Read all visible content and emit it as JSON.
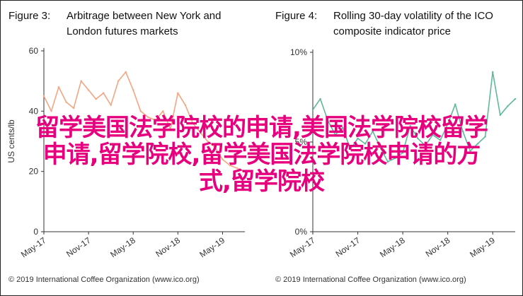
{
  "page": {
    "overlay_lines": [
      "留学美国法学院校的申请,美国法学院校留学",
      "申请,留学院校,留学美国法学院校申请的方",
      "式,留学院校"
    ]
  },
  "colors": {
    "fig3_series": "#f4a582",
    "fig3_series_dark": "#e8846a",
    "fig4_series": "#5fb89a",
    "axis": "#333333",
    "overlay": "#e6007e"
  },
  "chart_data": [
    {
      "type": "line",
      "figure_label": "Figure 3:",
      "title": "Arbitrage between New York and London futures markets",
      "ylabel": "US cents/lb",
      "ylim": [
        0,
        60
      ],
      "y_ticks": [
        0,
        20,
        40,
        60
      ],
      "x_tick_labels": [
        "May-17",
        "Nov-17",
        "May-18",
        "Nov-18",
        "May-19"
      ],
      "x_range_months": [
        0,
        27
      ],
      "grid": false,
      "credit": "© 2019 International Coffee Organization (www.ico.org)",
      "series": [
        {
          "x": [
            "2017-05",
            "2017-06",
            "2017-07",
            "2017-08",
            "2017-09",
            "2017-10",
            "2017-11",
            "2017-12",
            "2018-01",
            "2018-02",
            "2018-03",
            "2018-04",
            "2018-05",
            "2018-06",
            "2018-07",
            "2018-08",
            "2018-09",
            "2018-10",
            "2018-11",
            "2018-12",
            "2019-01",
            "2019-02",
            "2019-03",
            "2019-04",
            "2019-05",
            "2019-06",
            "2019-07",
            "2019-08"
          ],
          "values": [
            45,
            40,
            48,
            43,
            41,
            50,
            47,
            44,
            46,
            42,
            50,
            53,
            47,
            40,
            38,
            37,
            40,
            34,
            46,
            42,
            36,
            33,
            30,
            28,
            24,
            22,
            21,
            20
          ]
        }
      ]
    },
    {
      "type": "line",
      "figure_label": "Figure 4:",
      "title": "Rolling 30-day volatility of the ICO composite indicator price",
      "ylabel": "",
      "ylim": [
        0,
        10
      ],
      "y_ticks": [
        0,
        5,
        10
      ],
      "y_tick_labels": [
        "0%",
        "5%",
        "10%"
      ],
      "x_tick_labels": [
        "May-17",
        "Nov-17",
        "May-18",
        "Nov-18",
        "May-19"
      ],
      "x_range_months": [
        0,
        27
      ],
      "grid": false,
      "credit": "© 2019 International Coffee Organization (www.ico.org)",
      "series": [
        {
          "x": [
            "2017-05",
            "2017-06",
            "2017-07",
            "2017-08",
            "2017-09",
            "2017-10",
            "2017-11",
            "2017-12",
            "2018-01",
            "2018-02",
            "2018-03",
            "2018-04",
            "2018-05",
            "2018-06",
            "2018-07",
            "2018-08",
            "2018-09",
            "2018-10",
            "2018-11",
            "2018-12",
            "2019-01",
            "2019-02",
            "2019-03",
            "2019-04",
            "2019-05",
            "2019-06",
            "2019-07",
            "2019-08"
          ],
          "values": [
            6.8,
            7.4,
            6.2,
            5.4,
            5.8,
            4.6,
            5.2,
            4.9,
            5.6,
            4.7,
            3.9,
            4.1,
            4.4,
            5.9,
            5.2,
            4.8,
            5.4,
            5.1,
            6.0,
            7.1,
            5.6,
            4.5,
            4.9,
            5.3,
            8.9,
            6.5,
            7.0,
            7.4
          ]
        }
      ]
    }
  ]
}
